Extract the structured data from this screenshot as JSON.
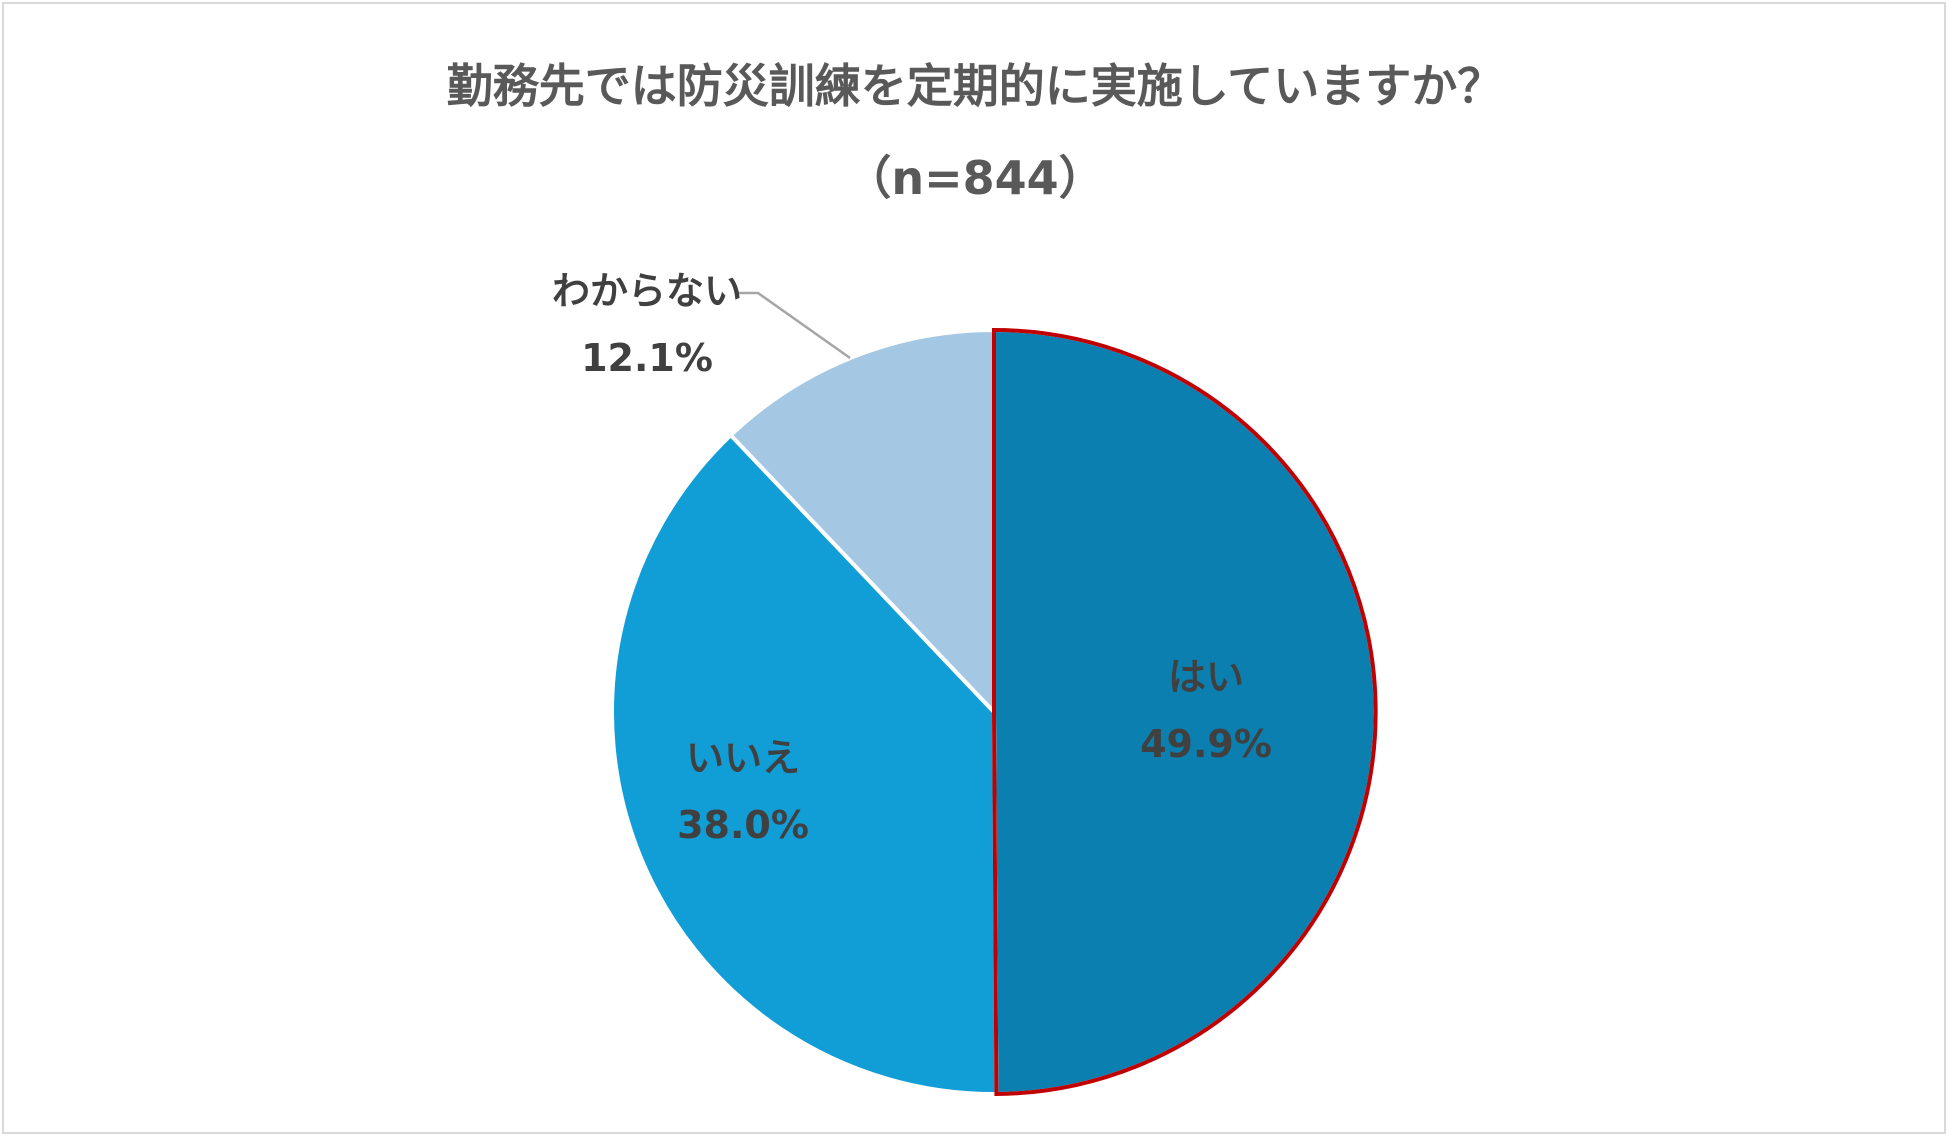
{
  "chart_data": {
    "type": "pie",
    "title": "勤務先では防災訓練を定期的に実施していますか？",
    "subtitle": "（n=844）",
    "slices": [
      {
        "label": "はい",
        "value": 49.9,
        "display": "49.9%",
        "color": "#0b80b0",
        "highlighted": true
      },
      {
        "label": "いいえ",
        "value": 38.0,
        "display": "38.0%",
        "color": "#119dd5",
        "highlighted": false
      },
      {
        "label": "わからない",
        "value": 12.1,
        "display": "12.1%",
        "color": "#a4c8e4",
        "highlighted": false
      }
    ],
    "start_angle": "12 o'clock",
    "direction": "clockwise",
    "highlight_outline_color": "#c00000",
    "slice_border_color": "#ffffff",
    "label_color": "#404040",
    "leader_line_color": "#a6a6a6"
  }
}
